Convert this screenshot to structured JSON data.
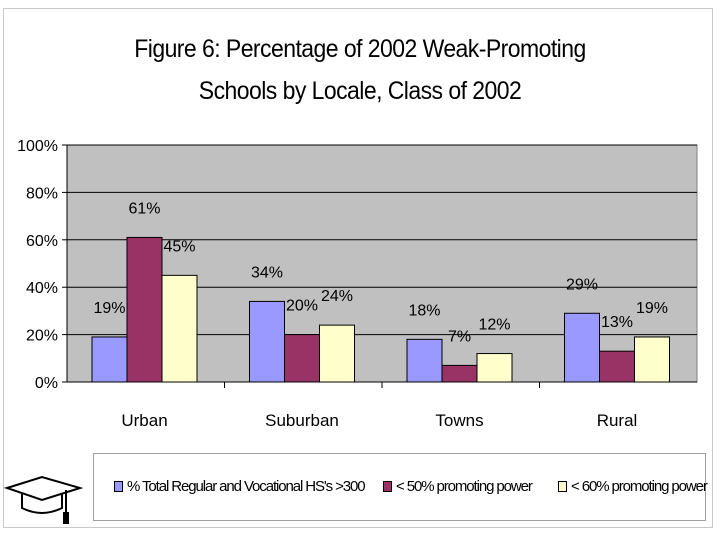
{
  "chart_data": {
    "type": "bar",
    "title_lines": [
      "Figure 6: Percentage of 2002 Weak-Promoting",
      "Schools by Locale, Class of 2002"
    ],
    "categories": [
      "Urban",
      "Suburban",
      "Towns",
      "Rural"
    ],
    "series": [
      {
        "name": "% Total Regular and Vocational HS's >300",
        "values": [
          19,
          34,
          18,
          29
        ],
        "color": "#9999ff",
        "value_labels": [
          "19%",
          "34%",
          "18%",
          "29%"
        ]
      },
      {
        "name": "< 50% promoting power",
        "values": [
          61,
          20,
          7,
          13
        ],
        "color": "#993366",
        "value_labels": [
          "61%",
          "20%",
          "7%",
          "13%"
        ]
      },
      {
        "name": "< 60% promoting power",
        "values": [
          45,
          24,
          12,
          19
        ],
        "color": "#ffffcc",
        "value_labels": [
          "45%",
          "24%",
          "12%",
          "19%"
        ]
      }
    ],
    "ylim": [
      0,
      100
    ],
    "yticks": [
      0,
      20,
      40,
      60,
      80,
      100
    ],
    "ytick_labels": [
      "0%",
      "20%",
      "40%",
      "60%",
      "80%",
      "100%"
    ],
    "xlabel": "",
    "ylabel": "",
    "grid": true,
    "plot_background": "#c0c0c0",
    "legend_position": "bottom"
  },
  "logo_icon": "graduation-cap-icon"
}
